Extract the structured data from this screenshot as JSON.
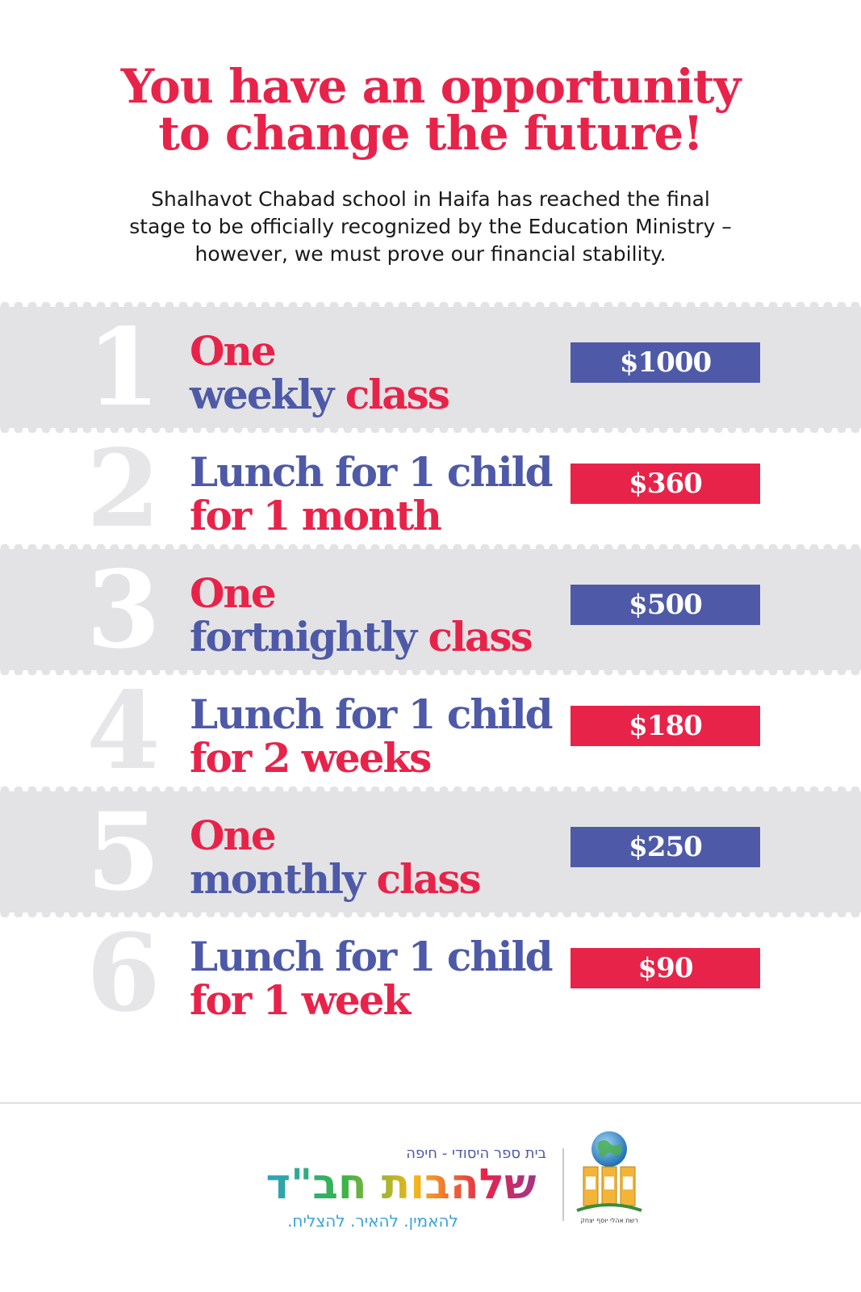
{
  "headline": {
    "line1": "You have an opportunity",
    "line2": "to change the future!"
  },
  "intro": {
    "line1": "Shalhavot Chabad school in Haifa has reached the final",
    "line2": "stage to be officially recognized by the Education Ministry –",
    "line3": "however, we must prove our financial stability."
  },
  "options": [
    {
      "number": "1",
      "line1": [
        {
          "text": "One",
          "color": "#e8234a"
        }
      ],
      "line2": [
        {
          "text": "weekly ",
          "color": "#4e5aa8"
        },
        {
          "text": "class",
          "color": "#e8234a"
        }
      ],
      "price": "$1000",
      "price_color": "#4e5aa8"
    },
    {
      "number": "2",
      "line1": [
        {
          "text": "Lunch for 1 child",
          "color": "#4e5aa8"
        }
      ],
      "line2": [
        {
          "text": "for 1 month",
          "color": "#e8234a"
        }
      ],
      "price": "$360",
      "price_color": "#e8234a"
    },
    {
      "number": "3",
      "line1": [
        {
          "text": "One",
          "color": "#e8234a"
        }
      ],
      "line2": [
        {
          "text": "fortnightly ",
          "color": "#4e5aa8"
        },
        {
          "text": "class",
          "color": "#e8234a"
        }
      ],
      "price": "$500",
      "price_color": "#4e5aa8"
    },
    {
      "number": "4",
      "line1": [
        {
          "text": "Lunch for 1 child",
          "color": "#4e5aa8"
        }
      ],
      "line2": [
        {
          "text": "for 2 weeks",
          "color": "#e8234a"
        }
      ],
      "price": "$180",
      "price_color": "#e8234a"
    },
    {
      "number": "5",
      "line1": [
        {
          "text": "One",
          "color": "#e8234a"
        }
      ],
      "line2": [
        {
          "text": "monthly ",
          "color": "#4e5aa8"
        },
        {
          "text": "class",
          "color": "#e8234a"
        }
      ],
      "price": "$250",
      "price_color": "#4e5aa8"
    },
    {
      "number": "6",
      "line1": [
        {
          "text": "Lunch for 1 child",
          "color": "#4e5aa8"
        }
      ],
      "line2": [
        {
          "text": "for 1 week",
          "color": "#e8234a"
        }
      ],
      "price": "$90",
      "price_color": "#e8234a"
    }
  ],
  "footer": {
    "school_subtitle": "בית ספר היסודי - חיפה",
    "school_name": "שלהבות חב\"ד",
    "school_tagline": "להאמין. להאיר. להצליח.",
    "emblem_caption": "רשת אהלי יוסף יצחק"
  },
  "colors": {
    "red": "#e8234a",
    "blue": "#4e5aa8",
    "gray": "#e3e3e5"
  }
}
